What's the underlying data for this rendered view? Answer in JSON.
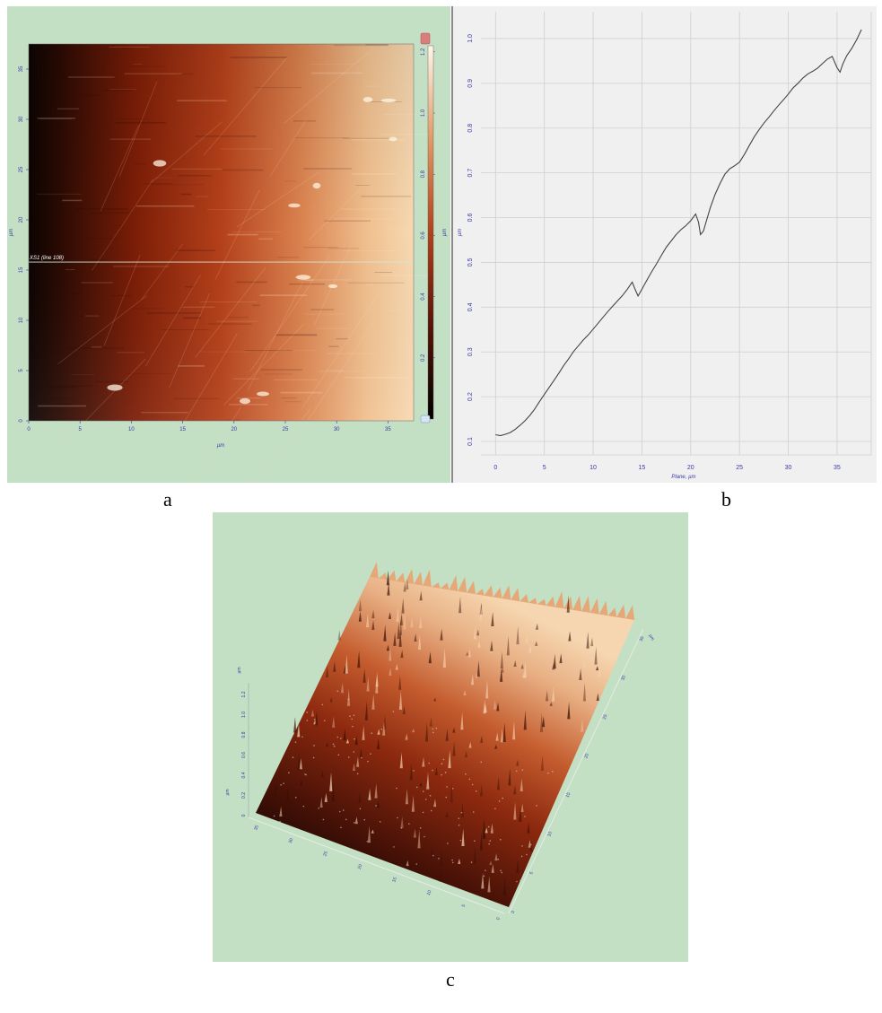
{
  "panel_labels": {
    "a": "a",
    "b": "b",
    "c": "c"
  },
  "colors": {
    "panel_bg": "#c3dfc4",
    "chart_bg": "#f0f0f0",
    "axis_text": "#3a3aa8",
    "line": "#444444",
    "afm_dark": "#0d0402",
    "afm_mid": "#b8401a",
    "afm_light": "#f6d4ac"
  },
  "chart_data": [
    {
      "panel": "a",
      "type": "heatmap",
      "title": "",
      "xlabel": "µm",
      "ylabel": "µm",
      "x_ticks": [
        "0",
        "5",
        "10",
        "15",
        "20",
        "25",
        "30",
        "35"
      ],
      "y_ticks": [
        "0",
        "5",
        "10",
        "15",
        "20",
        "25",
        "30",
        "35"
      ],
      "xlim": [
        0,
        37.5
      ],
      "ylim": [
        0,
        37.5
      ],
      "colorbar": {
        "ticks": [
          "0.2",
          "0.4",
          "0.6",
          "0.8",
          "1.0",
          "1.2"
        ],
        "range": [
          0,
          1.22
        ],
        "label": "µm"
      },
      "annotation": "XS1 (line 108)",
      "annotation_y": 15.8
    },
    {
      "panel": "b",
      "type": "line",
      "title": "",
      "xlabel": "Plane, µm",
      "ylabel": "µm",
      "x_ticks": [
        "0",
        "5",
        "10",
        "15",
        "20",
        "25",
        "30",
        "35"
      ],
      "y_ticks": [
        "0.1",
        "0.2",
        "0.3",
        "0.4",
        "0.5",
        "0.6",
        "0.7",
        "0.8",
        "0.9",
        "1.0"
      ],
      "xlim": [
        -1.5,
        38.5
      ],
      "ylim": [
        0.07,
        1.06
      ],
      "grid": true,
      "series": [
        {
          "x": [
            0,
            0.5,
            1,
            1.5,
            2,
            2.5,
            3,
            3.5,
            4,
            4.5,
            5,
            5.5,
            6,
            6.5,
            7,
            7.5,
            8,
            8.5,
            9,
            9.5,
            10,
            10.5,
            11,
            11.5,
            12,
            12.5,
            13,
            13.5,
            14,
            14.3,
            14.6,
            15,
            15.5,
            16,
            16.5,
            17,
            17.5,
            18,
            18.5,
            19,
            19.5,
            20,
            20.5,
            20.8,
            21,
            21.3,
            21.6,
            22,
            22.5,
            23,
            23.5,
            24,
            24.5,
            25,
            25.5,
            26,
            26.5,
            27,
            27.5,
            28,
            28.5,
            29,
            29.5,
            30,
            30.5,
            31,
            31.5,
            32,
            32.5,
            33,
            33.5,
            34,
            34.5,
            35,
            35.3,
            35.6,
            36,
            36.5,
            37,
            37.5
          ],
          "y": [
            0.115,
            0.113,
            0.116,
            0.12,
            0.127,
            0.136,
            0.146,
            0.158,
            0.172,
            0.189,
            0.205,
            0.221,
            0.237,
            0.253,
            0.27,
            0.285,
            0.301,
            0.314,
            0.327,
            0.338,
            0.351,
            0.364,
            0.377,
            0.39,
            0.402,
            0.414,
            0.426,
            0.44,
            0.456,
            0.44,
            0.425,
            0.44,
            0.46,
            0.479,
            0.497,
            0.516,
            0.534,
            0.548,
            0.562,
            0.573,
            0.582,
            0.593,
            0.608,
            0.59,
            0.562,
            0.57,
            0.592,
            0.622,
            0.652,
            0.676,
            0.697,
            0.709,
            0.716,
            0.724,
            0.741,
            0.761,
            0.78,
            0.796,
            0.811,
            0.824,
            0.838,
            0.851,
            0.863,
            0.876,
            0.89,
            0.9,
            0.912,
            0.921,
            0.927,
            0.934,
            0.944,
            0.954,
            0.96,
            0.935,
            0.925,
            0.944,
            0.962,
            0.978,
            0.997,
            1.02
          ]
        }
      ]
    },
    {
      "panel": "c",
      "type": "surface3d",
      "title": "",
      "zlabel": "µm",
      "xlabel": "µm",
      "ylabel": "µm",
      "z_ticks": [
        "0",
        "0.2",
        "0.4",
        "0.6",
        "0.8",
        "1.0",
        "1.2"
      ],
      "front_ticks": [
        "35",
        "30",
        "25",
        "20",
        "15",
        "10",
        "5",
        "0"
      ],
      "right_ticks": [
        "0",
        "5",
        "10",
        "15",
        "20",
        "25",
        "30",
        "35"
      ]
    }
  ]
}
